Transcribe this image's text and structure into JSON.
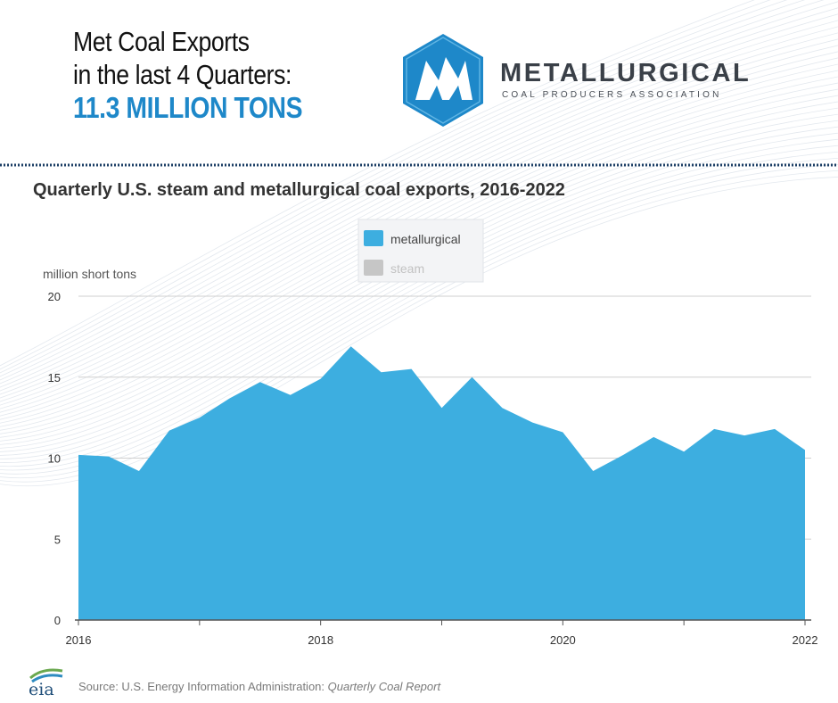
{
  "header": {
    "headline_line1": "Met Coal Exports",
    "headline_line2": "in the last 4 Quarters:",
    "headline_figure": "11.3 MILLION TONS"
  },
  "brand": {
    "name": "METALLURGICAL",
    "tagline": "COAL PRODUCERS ASSOCIATION",
    "accent_color": "#1e88c9"
  },
  "chart_data": {
    "type": "area",
    "title": "Quarterly U.S. steam and metallurgical coal exports, 2016-2022",
    "ylabel": "million short tons",
    "xlabel": "",
    "ylim": [
      0,
      20
    ],
    "xlim": [
      2016,
      2022
    ],
    "y_ticks": [
      "0",
      "5",
      "10",
      "15",
      "20"
    ],
    "x_ticks": [
      "2016",
      "2018",
      "2020",
      "2022"
    ],
    "grid": true,
    "legend_position": "top-center",
    "legend": [
      "metallurgical",
      "steam"
    ],
    "series": [
      {
        "name": "metallurgical",
        "color": "#3daee0",
        "values": [
          10.2,
          10.1,
          9.2,
          11.7,
          12.5,
          13.7,
          14.7,
          13.9,
          14.9,
          16.9,
          15.3,
          15.5,
          13.1,
          15.0,
          13.1,
          12.2,
          11.6,
          9.2,
          10.2,
          11.3,
          10.4,
          11.8,
          11.4,
          11.8,
          10.5
        ],
        "x_start": 2016,
        "x_step": 0.25
      },
      {
        "name": "steam",
        "color": "#c6c6c6",
        "values": []
      }
    ]
  },
  "footer": {
    "eia_label": "eia",
    "source_prefix": "Source: U.S. Energy Information Administration: ",
    "source_report": "Quarterly Coal Report"
  }
}
